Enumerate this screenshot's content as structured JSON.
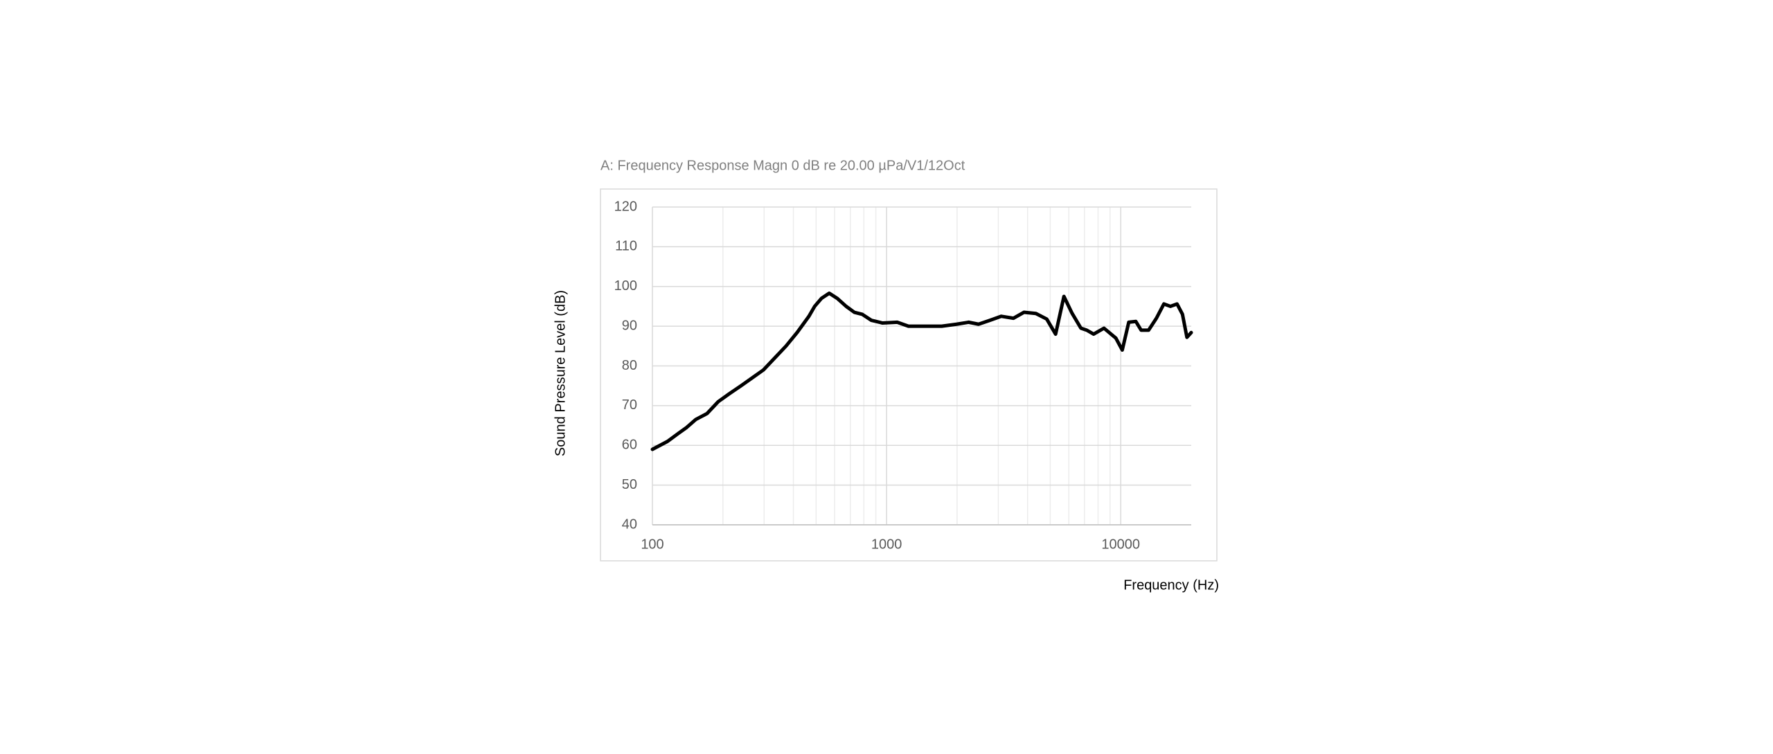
{
  "chart_data": {
    "type": "line",
    "title": "A: Frequency Response Magn 0 dB re 20.00 µPa/V1/12Oct",
    "x_label": "Frequency (Hz)",
    "y_label": "Sound Pressure Level (dB)",
    "x_scale": "log",
    "xlim": [
      100,
      20000
    ],
    "xticks": [
      100,
      1000,
      10000
    ],
    "xminor": [
      200,
      300,
      400,
      500,
      600,
      700,
      800,
      900,
      2000,
      3000,
      4000,
      5000,
      6000,
      7000,
      8000,
      9000
    ],
    "ylim": [
      40,
      120
    ],
    "yticks": [
      40,
      50,
      60,
      70,
      80,
      90,
      100,
      110,
      120
    ],
    "grid": true,
    "series": [
      {
        "color": "#000000",
        "x": [
          100,
          116,
          129,
          140,
          153,
          171,
          191,
          213,
          239,
          267,
          298,
          333,
          372,
          416,
          466,
          493,
          527,
          569,
          616,
          672,
          728,
          787,
          860,
          961,
          1110,
          1240,
          1500,
          1720,
          1990,
          2240,
          2470,
          2770,
          3090,
          3480,
          3860,
          4340,
          4830,
          5270,
          5720,
          6190,
          6760,
          7160,
          7660,
          8480,
          9530,
          10150,
          10820,
          11600,
          12220,
          13150,
          14200,
          15280,
          16300,
          17400,
          18350,
          19170,
          20000
        ],
        "values": [
          59,
          61,
          63,
          64.5,
          66.5,
          68,
          71,
          73,
          75,
          77,
          79,
          82,
          85,
          88.5,
          92.5,
          95,
          97,
          98.3,
          97,
          95,
          93.5,
          93,
          91.5,
          90.8,
          91,
          90,
          90,
          90,
          90.5,
          91,
          90.5,
          91.5,
          92.5,
          92,
          93.5,
          93.2,
          91.8,
          88,
          97.5,
          93.3,
          89.5,
          89,
          88,
          89.5,
          87,
          84,
          91,
          91.2,
          89,
          89,
          92,
          95.6,
          95,
          95.6,
          93,
          87.2,
          88.4
        ]
      }
    ]
  }
}
